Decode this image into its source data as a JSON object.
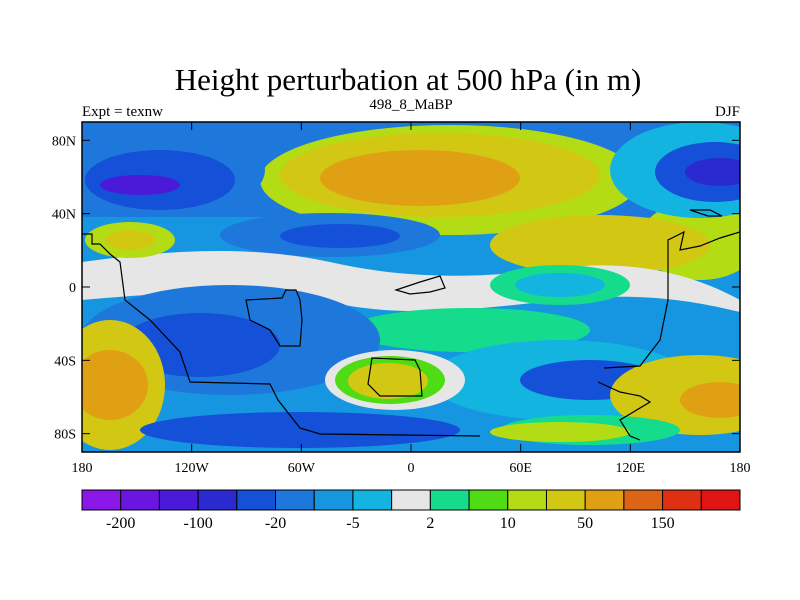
{
  "chart_data": {
    "type": "heatmap",
    "title": "Height perturbation at 500 hPa (in m)",
    "left_label": "Expt = texnw",
    "center_label": "498_8_MaBP",
    "right_label": "DJF",
    "x_ticks": [
      "180",
      "120W",
      "60W",
      "0",
      "60E",
      "120E",
      "180"
    ],
    "x_tick_values": [
      -180,
      -120,
      -60,
      0,
      60,
      120,
      180
    ],
    "y_ticks": [
      "80N",
      "40N",
      "0",
      "40S",
      "80S"
    ],
    "y_tick_values": [
      80,
      40,
      0,
      -40,
      -80
    ],
    "xlim": [
      -180,
      180
    ],
    "ylim": [
      -90,
      90
    ],
    "colorbar": {
      "colors": [
        "#8a16e8",
        "#6a16e0",
        "#4a1ad8",
        "#2a2ad0",
        "#1450d8",
        "#1e78dc",
        "#1696e0",
        "#14b4e0",
        "#e6e6e6",
        "#14dc8c",
        "#50dc14",
        "#b4dc14",
        "#d2c814",
        "#e0a014",
        "#dc6414",
        "#e03014",
        "#e01414"
      ],
      "labels": [
        "-200",
        "-100",
        "-20",
        "-5",
        "2",
        "10",
        "50",
        "150"
      ]
    }
  }
}
